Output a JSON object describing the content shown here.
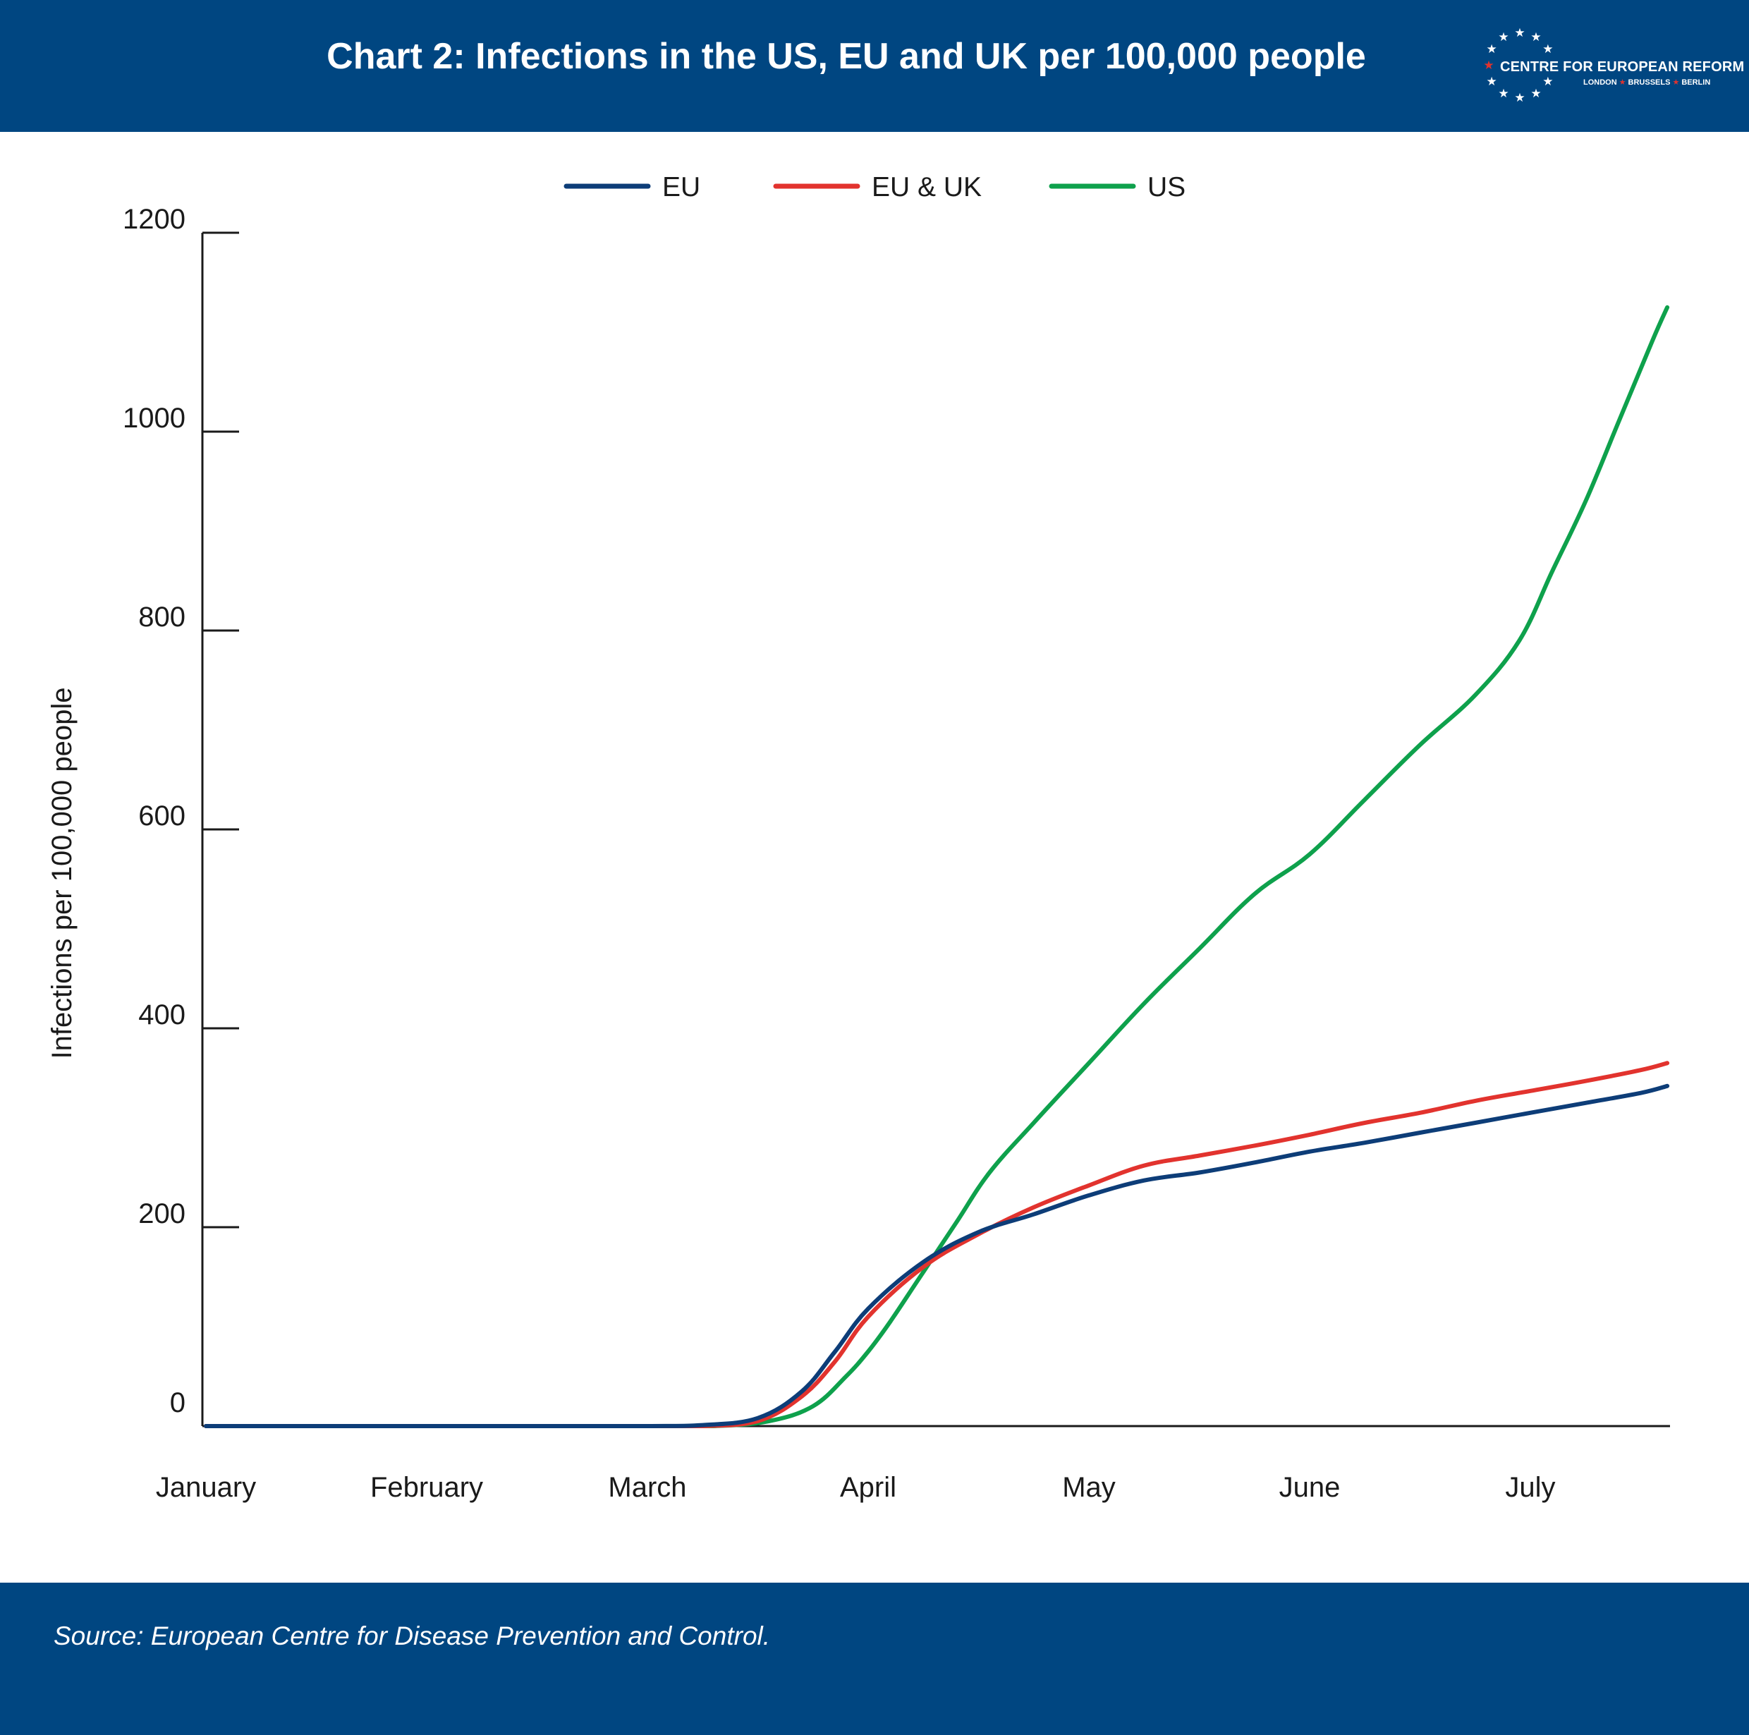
{
  "header": {
    "title": "Chart 2: Infections in the US, EU and UK per 100,000 people",
    "logo": {
      "name": "CENTRE FOR EUROPEAN REFORM",
      "cities": [
        "LONDON",
        "BRUSSELS",
        "BERLIN"
      ],
      "star_color": "#ffffff",
      "accent_star_color": "#e2332e"
    },
    "background": "#004681"
  },
  "footer": {
    "source": "Source: European Centre for Disease Prevention and Control.",
    "background": "#004681"
  },
  "chart_data": {
    "type": "line",
    "title": "",
    "xlabel": "",
    "ylabel": "Infections per 100,000 people",
    "ylim": [
      0,
      1200
    ],
    "yticks": [
      0,
      200,
      400,
      600,
      800,
      1000,
      1200
    ],
    "xlim": [
      0,
      6.62
    ],
    "xticks": [
      {
        "label": "January",
        "x": 0
      },
      {
        "label": "February",
        "x": 1
      },
      {
        "label": "March",
        "x": 2
      },
      {
        "label": "April",
        "x": 3
      },
      {
        "label": "May",
        "x": 4
      },
      {
        "label": "June",
        "x": 5
      },
      {
        "label": "July",
        "x": 6
      }
    ],
    "grid": false,
    "legend_position": "top",
    "series": [
      {
        "name": "EU",
        "color": "#0d3d78",
        "points": [
          [
            0,
            0
          ],
          [
            1,
            0
          ],
          [
            2,
            0
          ],
          [
            2.25,
            1
          ],
          [
            2.5,
            8
          ],
          [
            2.7,
            35
          ],
          [
            2.85,
            75
          ],
          [
            3,
            118
          ],
          [
            3.25,
            165
          ],
          [
            3.5,
            195
          ],
          [
            3.75,
            213
          ],
          [
            4,
            232
          ],
          [
            4.25,
            247
          ],
          [
            4.5,
            255
          ],
          [
            4.75,
            265
          ],
          [
            5,
            276
          ],
          [
            5.25,
            285
          ],
          [
            5.5,
            295
          ],
          [
            5.75,
            305
          ],
          [
            6,
            315
          ],
          [
            6.25,
            325
          ],
          [
            6.5,
            335
          ],
          [
            6.62,
            342
          ]
        ]
      },
      {
        "name": "EU & UK",
        "color": "#e2332e",
        "points": [
          [
            0,
            0
          ],
          [
            1,
            0
          ],
          [
            2,
            0
          ],
          [
            2.25,
            0
          ],
          [
            2.5,
            5
          ],
          [
            2.7,
            30
          ],
          [
            2.85,
            65
          ],
          [
            3,
            110
          ],
          [
            3.25,
            160
          ],
          [
            3.5,
            193
          ],
          [
            3.75,
            220
          ],
          [
            4,
            242
          ],
          [
            4.25,
            262
          ],
          [
            4.5,
            272
          ],
          [
            4.75,
            282
          ],
          [
            5,
            293
          ],
          [
            5.25,
            305
          ],
          [
            5.5,
            315
          ],
          [
            5.75,
            327
          ],
          [
            6,
            337
          ],
          [
            6.25,
            347
          ],
          [
            6.5,
            358
          ],
          [
            6.62,
            365
          ]
        ]
      },
      {
        "name": "US",
        "color": "#0ea14c",
        "points": [
          [
            0,
            0
          ],
          [
            1,
            0
          ],
          [
            2,
            0
          ],
          [
            2.3,
            0
          ],
          [
            2.55,
            5
          ],
          [
            2.75,
            20
          ],
          [
            2.9,
            50
          ],
          [
            3,
            75
          ],
          [
            3.1,
            105
          ],
          [
            3.25,
            155
          ],
          [
            3.4,
            205
          ],
          [
            3.55,
            255
          ],
          [
            3.75,
            305
          ],
          [
            4,
            365
          ],
          [
            4.25,
            425
          ],
          [
            4.5,
            480
          ],
          [
            4.75,
            535
          ],
          [
            5,
            575
          ],
          [
            5.25,
            630
          ],
          [
            5.5,
            685
          ],
          [
            5.75,
            735
          ],
          [
            5.95,
            790
          ],
          [
            6.1,
            860
          ],
          [
            6.25,
            930
          ],
          [
            6.4,
            1010
          ],
          [
            6.55,
            1090
          ],
          [
            6.62,
            1125
          ]
        ]
      }
    ]
  }
}
